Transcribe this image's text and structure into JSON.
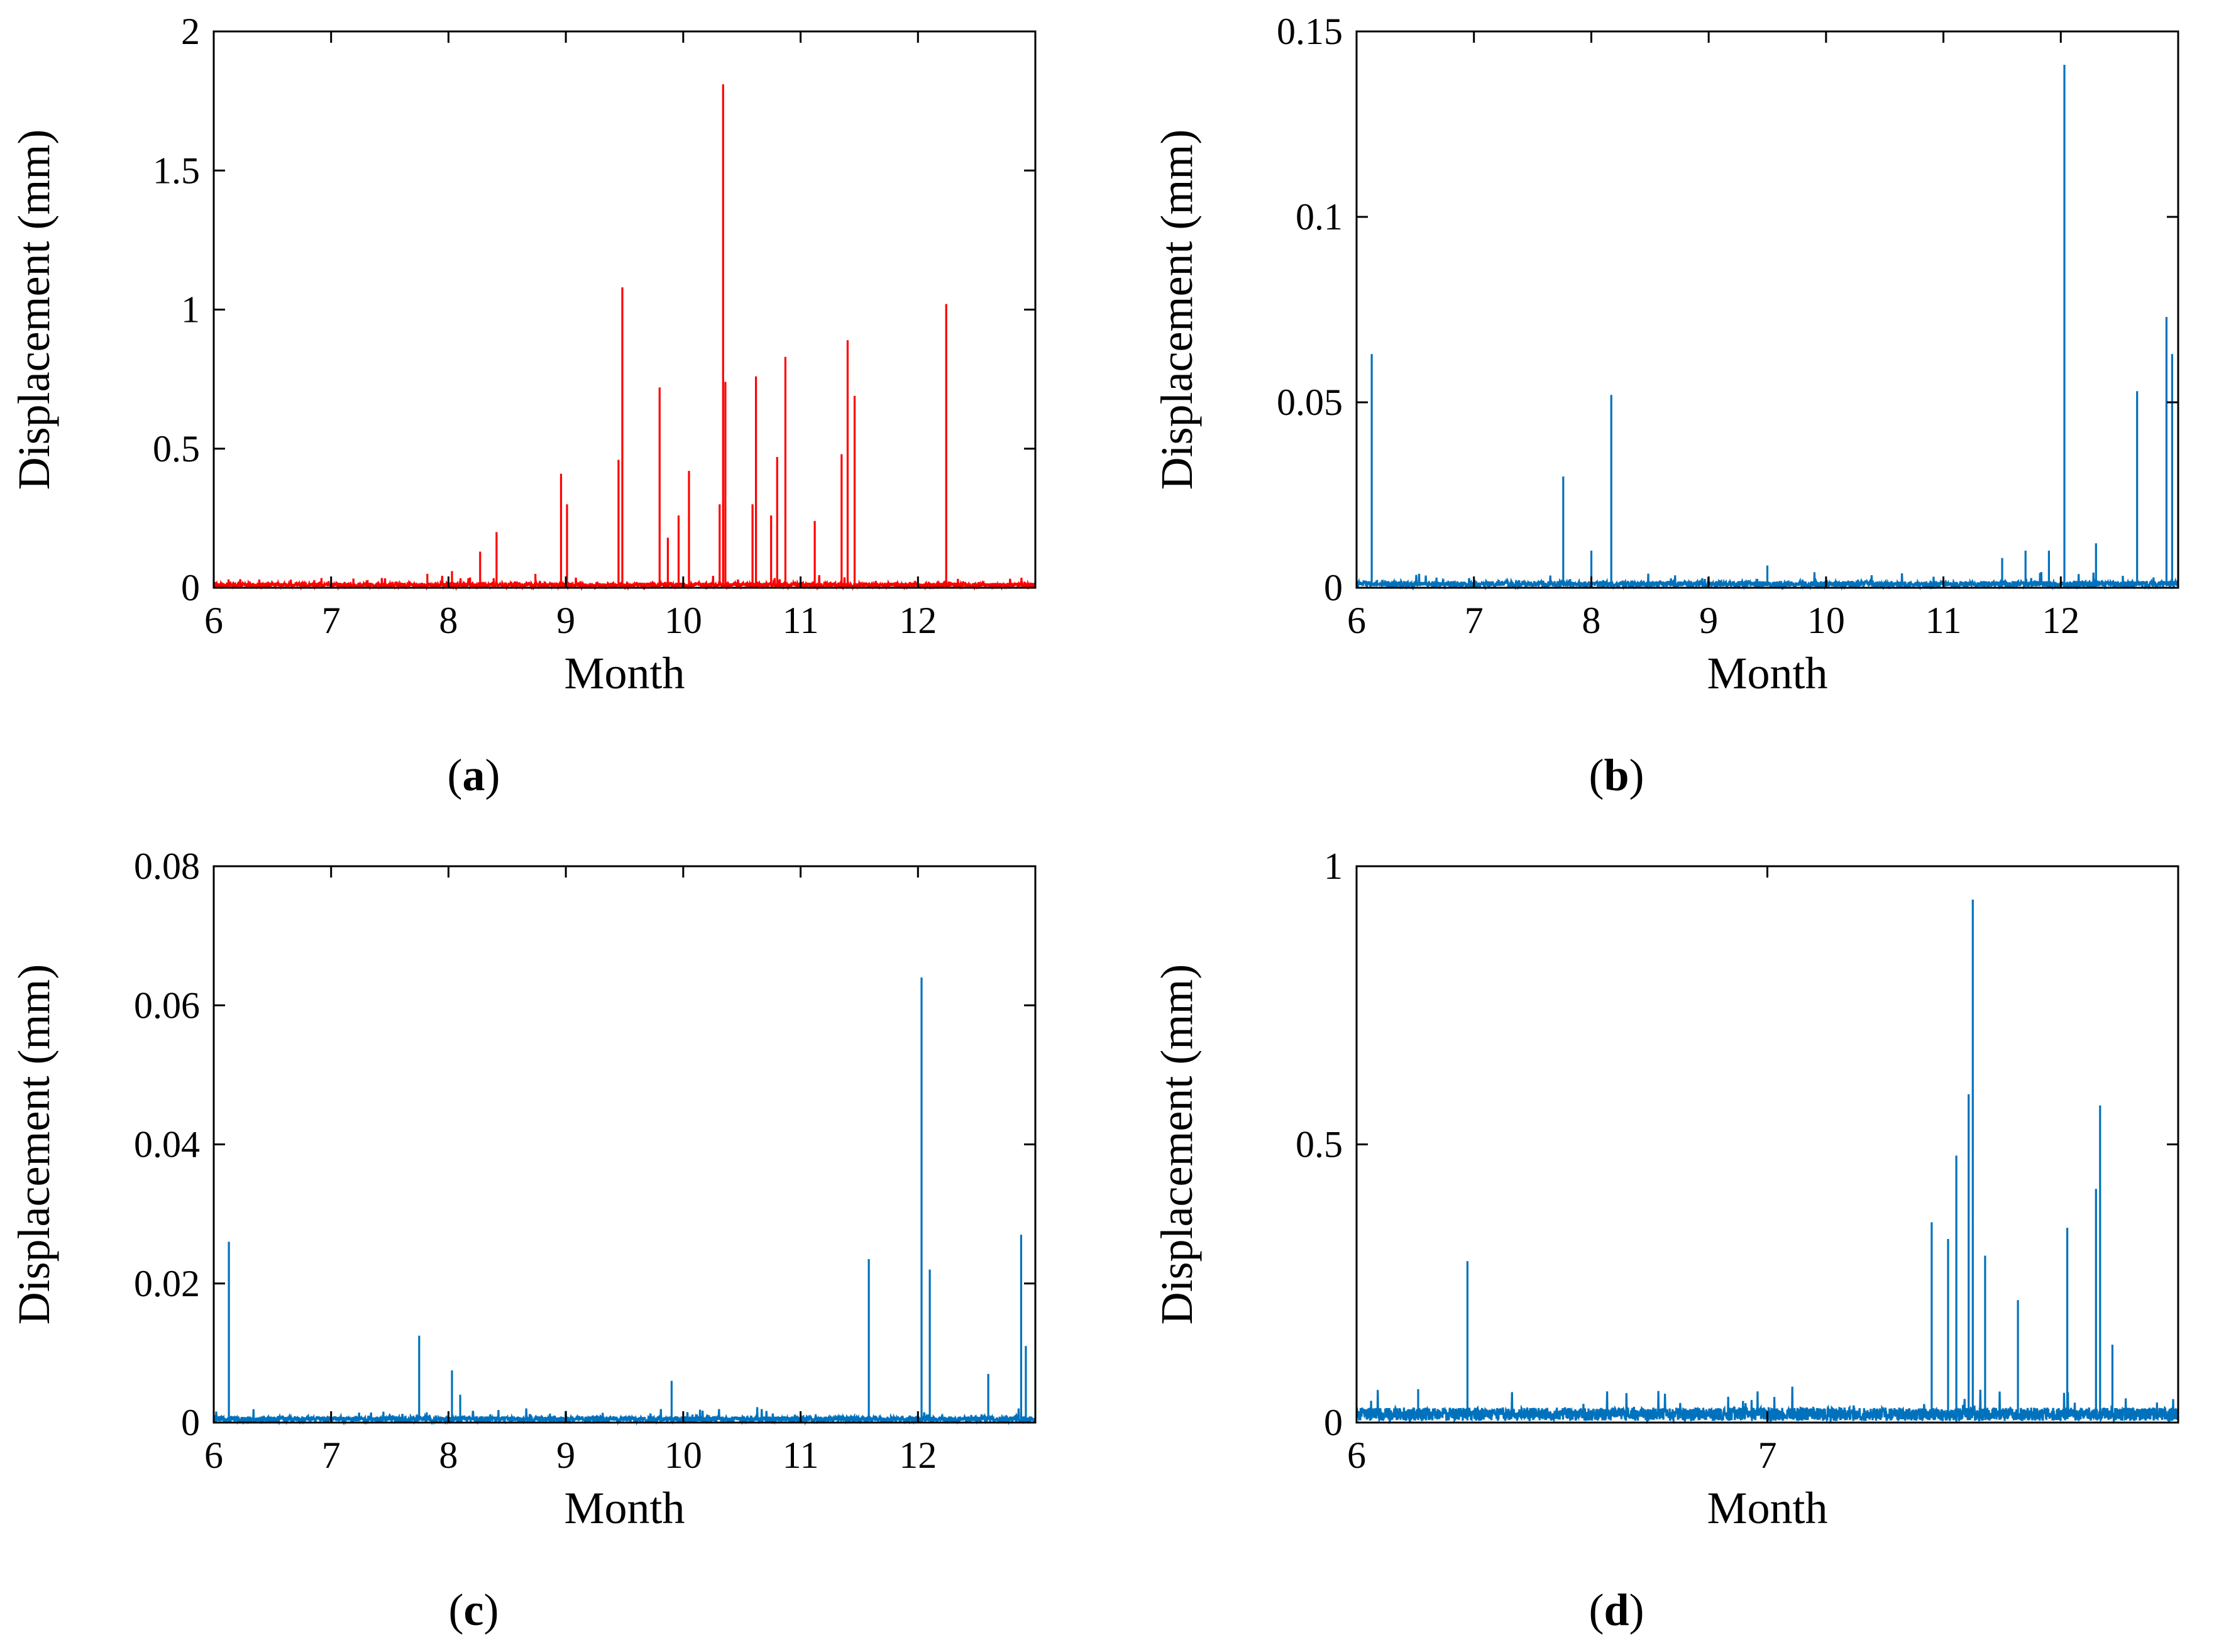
{
  "figure": {
    "panel_label_prefix": "(",
    "panel_label_suffix": ")"
  },
  "colors": {
    "red": "#ff0000",
    "blue": "#0072bd",
    "axis": "#000000"
  },
  "chart_data": [
    {
      "type": "line",
      "panel_label": "a",
      "xlabel": "Month",
      "ylabel": "Displacement (mm)",
      "xlim": [
        6,
        13
      ],
      "ylim": [
        0,
        2
      ],
      "xticks": [
        6,
        7,
        8,
        9,
        10,
        11,
        12
      ],
      "yticks": [
        0,
        0.5,
        1,
        1.5,
        2
      ],
      "ytick_labels": [
        "0",
        "0.5",
        "1",
        "1.5",
        "2"
      ],
      "color": "red",
      "baseline": 0.01,
      "spikes": [
        [
          7.82,
          0.05
        ],
        [
          8.03,
          0.06
        ],
        [
          8.27,
          0.13
        ],
        [
          8.41,
          0.2
        ],
        [
          8.74,
          0.05
        ],
        [
          8.96,
          0.41
        ],
        [
          9.01,
          0.3
        ],
        [
          9.45,
          0.46
        ],
        [
          9.48,
          1.08
        ],
        [
          9.8,
          0.72
        ],
        [
          9.87,
          0.18
        ],
        [
          9.96,
          0.26
        ],
        [
          10.05,
          0.42
        ],
        [
          10.31,
          0.3
        ],
        [
          10.34,
          1.81
        ],
        [
          10.36,
          0.74
        ],
        [
          10.59,
          0.3
        ],
        [
          10.62,
          0.76
        ],
        [
          10.75,
          0.26
        ],
        [
          10.8,
          0.47
        ],
        [
          10.87,
          0.83
        ],
        [
          11.12,
          0.24
        ],
        [
          11.35,
          0.48
        ],
        [
          11.4,
          0.89
        ],
        [
          11.46,
          0.69
        ],
        [
          12.24,
          1.02
        ]
      ]
    },
    {
      "type": "line",
      "panel_label": "b",
      "xlabel": "Month",
      "ylabel": "Displacement (mm)",
      "xlim": [
        6,
        13
      ],
      "ylim": [
        0,
        0.15
      ],
      "xticks": [
        6,
        7,
        8,
        9,
        10,
        11,
        12
      ],
      "yticks": [
        0,
        0.05,
        0.1,
        0.15
      ],
      "ytick_labels": [
        "0",
        "0.05",
        "0.1",
        "0.15"
      ],
      "color": "blue",
      "baseline": 0.001,
      "spikes": [
        [
          6.13,
          0.063
        ],
        [
          7.76,
          0.03
        ],
        [
          8.0,
          0.01
        ],
        [
          8.17,
          0.052
        ],
        [
          9.5,
          0.006
        ],
        [
          11.5,
          0.008
        ],
        [
          11.7,
          0.01
        ],
        [
          11.9,
          0.01
        ],
        [
          12.03,
          0.141
        ],
        [
          12.3,
          0.012
        ],
        [
          12.65,
          0.053
        ],
        [
          12.9,
          0.073
        ],
        [
          12.95,
          0.063
        ]
      ]
    },
    {
      "type": "line",
      "panel_label": "c",
      "xlabel": "Month",
      "ylabel": "Displacement (mm)",
      "xlim": [
        6,
        13
      ],
      "ylim": [
        0,
        0.08
      ],
      "xticks": [
        6,
        7,
        8,
        9,
        10,
        11,
        12
      ],
      "yticks": [
        0,
        0.02,
        0.04,
        0.06,
        0.08
      ],
      "ytick_labels": [
        "0",
        "0.02",
        "0.04",
        "0.06",
        "0.08"
      ],
      "color": "blue",
      "baseline": 0.0005,
      "spikes": [
        [
          6.13,
          0.026
        ],
        [
          7.75,
          0.0125
        ],
        [
          8.03,
          0.0075
        ],
        [
          8.1,
          0.004
        ],
        [
          9.9,
          0.006
        ],
        [
          11.58,
          0.0235
        ],
        [
          12.03,
          0.064
        ],
        [
          12.1,
          0.022
        ],
        [
          12.6,
          0.007
        ],
        [
          12.88,
          0.027
        ],
        [
          12.92,
          0.011
        ]
      ]
    },
    {
      "type": "line",
      "panel_label": "d",
      "xlabel": "Month",
      "ylabel": "Displacement (mm)",
      "xlim": [
        6,
        8
      ],
      "ylim": [
        0,
        1
      ],
      "xticks": [
        6,
        7
      ],
      "yticks": [
        0,
        0.5,
        1
      ],
      "ytick_labels": [
        "0",
        "0.5",
        "1"
      ],
      "color": "blue",
      "baseline": 0.015,
      "spikes": [
        [
          6.15,
          0.06
        ],
        [
          6.27,
          0.29
        ],
        [
          7.4,
          0.36
        ],
        [
          7.44,
          0.33
        ],
        [
          7.46,
          0.48
        ],
        [
          7.49,
          0.59
        ],
        [
          7.5,
          0.94
        ],
        [
          7.53,
          0.3
        ],
        [
          7.61,
          0.22
        ],
        [
          7.73,
          0.35
        ],
        [
          7.8,
          0.42
        ],
        [
          7.81,
          0.57
        ],
        [
          7.84,
          0.14
        ]
      ]
    }
  ]
}
